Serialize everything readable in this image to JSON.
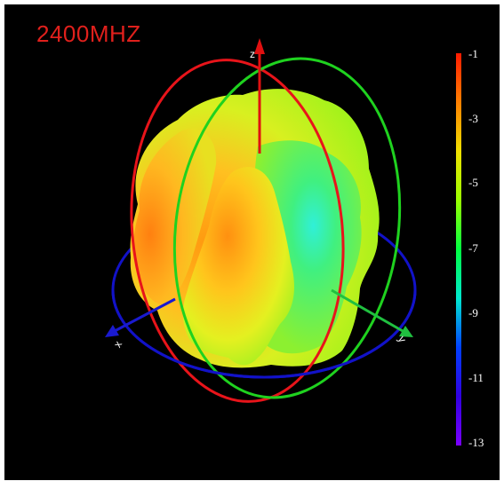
{
  "title": "2400MHZ",
  "axes": {
    "z": "z",
    "x": "x",
    "y": "y"
  },
  "colorbar": {
    "ticks": [
      "-1",
      "-3",
      "-5",
      "-7",
      "-9",
      "-11",
      "-13"
    ],
    "colors": [
      "#ff1a00",
      "#ff8000",
      "#f0e000",
      "#9aff00",
      "#00ff40",
      "#00e8d0",
      "#0040ff",
      "#3000e0",
      "#7a00ff"
    ]
  },
  "colors": {
    "ring_red": "#e8141a",
    "ring_green": "#1fd21f",
    "ring_blue": "#1212c8",
    "axis_z": "#e01010",
    "axis_x": "#1a1ad0",
    "axis_y": "#20c040"
  }
}
